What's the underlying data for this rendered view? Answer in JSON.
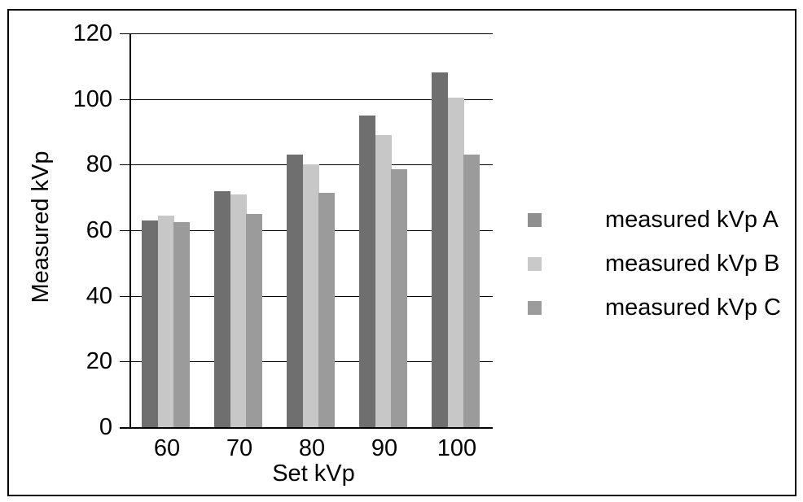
{
  "figure": {
    "background_color": "#ffffff",
    "frame_border_color": "#000000",
    "axis_color": "#000000",
    "gridline_color": "#000000"
  },
  "chart_data": {
    "type": "bar",
    "title": "",
    "categories": [
      "60",
      "70",
      "80",
      "90",
      "100"
    ],
    "series": [
      {
        "name": "measured kVp A",
        "color": "#6f6f6f",
        "legend_marker_color": "#8f8f8f",
        "values": [
          63,
          72,
          83,
          95,
          108
        ]
      },
      {
        "name": "measured kVp B",
        "color": "#c7c7c7",
        "legend_marker_color": "#c9c9c9",
        "values": [
          64.5,
          71,
          80,
          89,
          100.5
        ]
      },
      {
        "name": "measured kVp C",
        "color": "#9b9b9b",
        "legend_marker_color": "#9c9c9c",
        "values": [
          62.5,
          65,
          71.5,
          78.5,
          83
        ]
      }
    ],
    "xlabel": "Set kVp",
    "ylabel": "Measured kVp",
    "ylim": [
      0,
      120
    ],
    "yticks": [
      0,
      20,
      40,
      60,
      80,
      100,
      120
    ],
    "grid": true,
    "legend_position": "right"
  }
}
